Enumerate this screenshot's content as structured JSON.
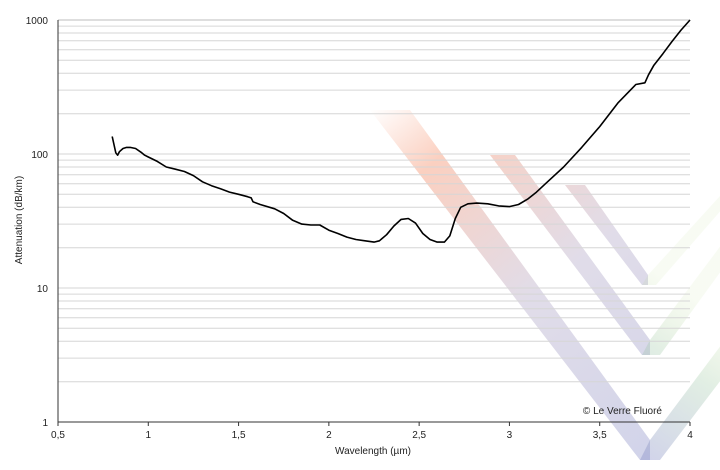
{
  "chart_data": {
    "type": "line",
    "xlabel": "Wavelength (µm)",
    "ylabel": "Attenuation (dB/km)",
    "xlim": [
      0.5,
      4
    ],
    "ylim": [
      1,
      1000
    ],
    "y_scale": "log",
    "x_ticks": [
      0.5,
      1,
      1.5,
      2,
      2.5,
      3,
      3.5,
      4
    ],
    "x_tick_labels": [
      "0,5",
      "1",
      "1,5",
      "2",
      "2,5",
      "3",
      "3,5",
      "4"
    ],
    "y_ticks": [
      1,
      10,
      100,
      1000
    ],
    "y_tick_labels": [
      "1",
      "10",
      "100",
      "1000"
    ],
    "grid": "horizontal minor lines at log decades",
    "line_color": "#000000",
    "series": [
      {
        "x": [
          0.8,
          0.82,
          0.83,
          0.84,
          0.86,
          0.88,
          0.9,
          0.93,
          0.96,
          0.98,
          1.0,
          1.05,
          1.1,
          1.15,
          1.2,
          1.25,
          1.3,
          1.35,
          1.4,
          1.45,
          1.5,
          1.55,
          1.57,
          1.58,
          1.62,
          1.7,
          1.75,
          1.8,
          1.85,
          1.9,
          1.95,
          2.0,
          2.05,
          2.1,
          2.15,
          2.2,
          2.25,
          2.28,
          2.32,
          2.36,
          2.4,
          2.44,
          2.48,
          2.52,
          2.56,
          2.6,
          2.64,
          2.67,
          2.7,
          2.73,
          2.77,
          2.82,
          2.88,
          2.94,
          3.0,
          3.05,
          3.1,
          3.15,
          3.2,
          3.3,
          3.4,
          3.5,
          3.6,
          3.7,
          3.75,
          3.77,
          3.8,
          3.85,
          3.9,
          3.95,
          4.0
        ],
        "y": [
          135,
          102,
          98,
          104,
          110,
          112,
          112,
          110,
          103,
          98,
          95,
          88,
          80,
          77,
          74,
          69,
          62,
          58,
          55,
          52,
          50,
          48,
          47,
          44,
          42,
          39,
          36,
          32,
          30,
          29.5,
          29.5,
          27,
          25.5,
          24,
          23,
          22.5,
          22,
          22.5,
          25,
          29,
          32.5,
          33,
          30.5,
          25.5,
          23,
          22,
          22,
          24.5,
          33,
          40,
          42.5,
          43,
          42.5,
          41,
          40.5,
          42,
          46,
          52,
          60,
          80,
          112,
          160,
          240,
          330,
          340,
          390,
          460,
          560,
          690,
          840,
          1000
        ]
      }
    ],
    "annotations": [
      "© Le Verre Fluoré"
    ]
  }
}
